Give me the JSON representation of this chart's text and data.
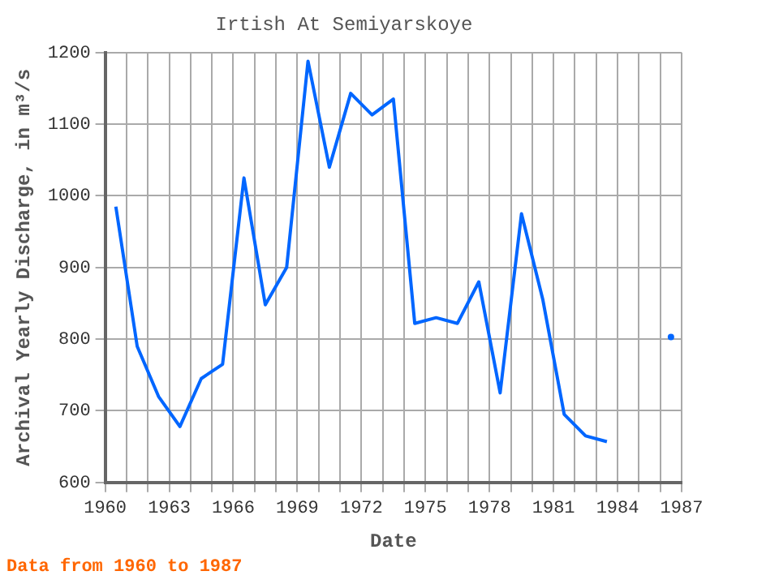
{
  "chart_data": {
    "type": "line",
    "title": "Irtish At Semiyarskoye",
    "xlabel": "Date",
    "ylabel": "Archival Yearly Discharge, in m³/s",
    "annotations": [
      "Data from 1960 to 1987"
    ],
    "x": [
      1960.5,
      1961.5,
      1962.5,
      1963.5,
      1964.5,
      1965.5,
      1966.5,
      1967.5,
      1968.5,
      1969.5,
      1970.5,
      1971.5,
      1972.5,
      1973.5,
      1974.5,
      1975.5,
      1976.5,
      1977.5,
      1978.5,
      1979.5,
      1980.5,
      1981.5,
      1982.5,
      1983.5,
      1984.5,
      1985.5,
      1986.5
    ],
    "series": [
      {
        "color": "#0066ff",
        "values": [
          985,
          790,
          720,
          678,
          745,
          765,
          1025,
          848,
          900,
          1188,
          1040,
          1143,
          1113,
          1135,
          822,
          830,
          822,
          880,
          725,
          975,
          855,
          695,
          665,
          657,
          null,
          null,
          803
        ]
      }
    ],
    "xlim": [
      1960,
      1987
    ],
    "xticks": [
      1960,
      {
        "value": 1961,
        "label": null
      },
      {
        "value": 1962,
        "label": null
      },
      1963,
      {
        "value": 1964,
        "label": null
      },
      {
        "value": 1965,
        "label": null
      },
      1966,
      {
        "value": 1967,
        "label": null
      },
      {
        "value": 1968,
        "label": null
      },
      1969,
      {
        "value": 1970,
        "label": null
      },
      {
        "value": 1971,
        "label": null
      },
      1972,
      {
        "value": 1973,
        "label": null
      },
      {
        "value": 1974,
        "label": null
      },
      1975,
      {
        "value": 1976,
        "label": null
      },
      {
        "value": 1977,
        "label": null
      },
      1978,
      {
        "value": 1979,
        "label": null
      },
      {
        "value": 1980,
        "label": null
      },
      1981,
      {
        "value": 1982,
        "label": null
      },
      {
        "value": 1983,
        "label": null
      },
      1984,
      {
        "value": 1985,
        "label": null
      },
      {
        "value": 1986,
        "label": null
      },
      1987
    ],
    "ylim": [
      600,
      1200
    ],
    "yticks": [
      600,
      700,
      800,
      900,
      1000,
      1100,
      1200
    ],
    "grid": true,
    "marker": "none",
    "line_style": "solid"
  }
}
